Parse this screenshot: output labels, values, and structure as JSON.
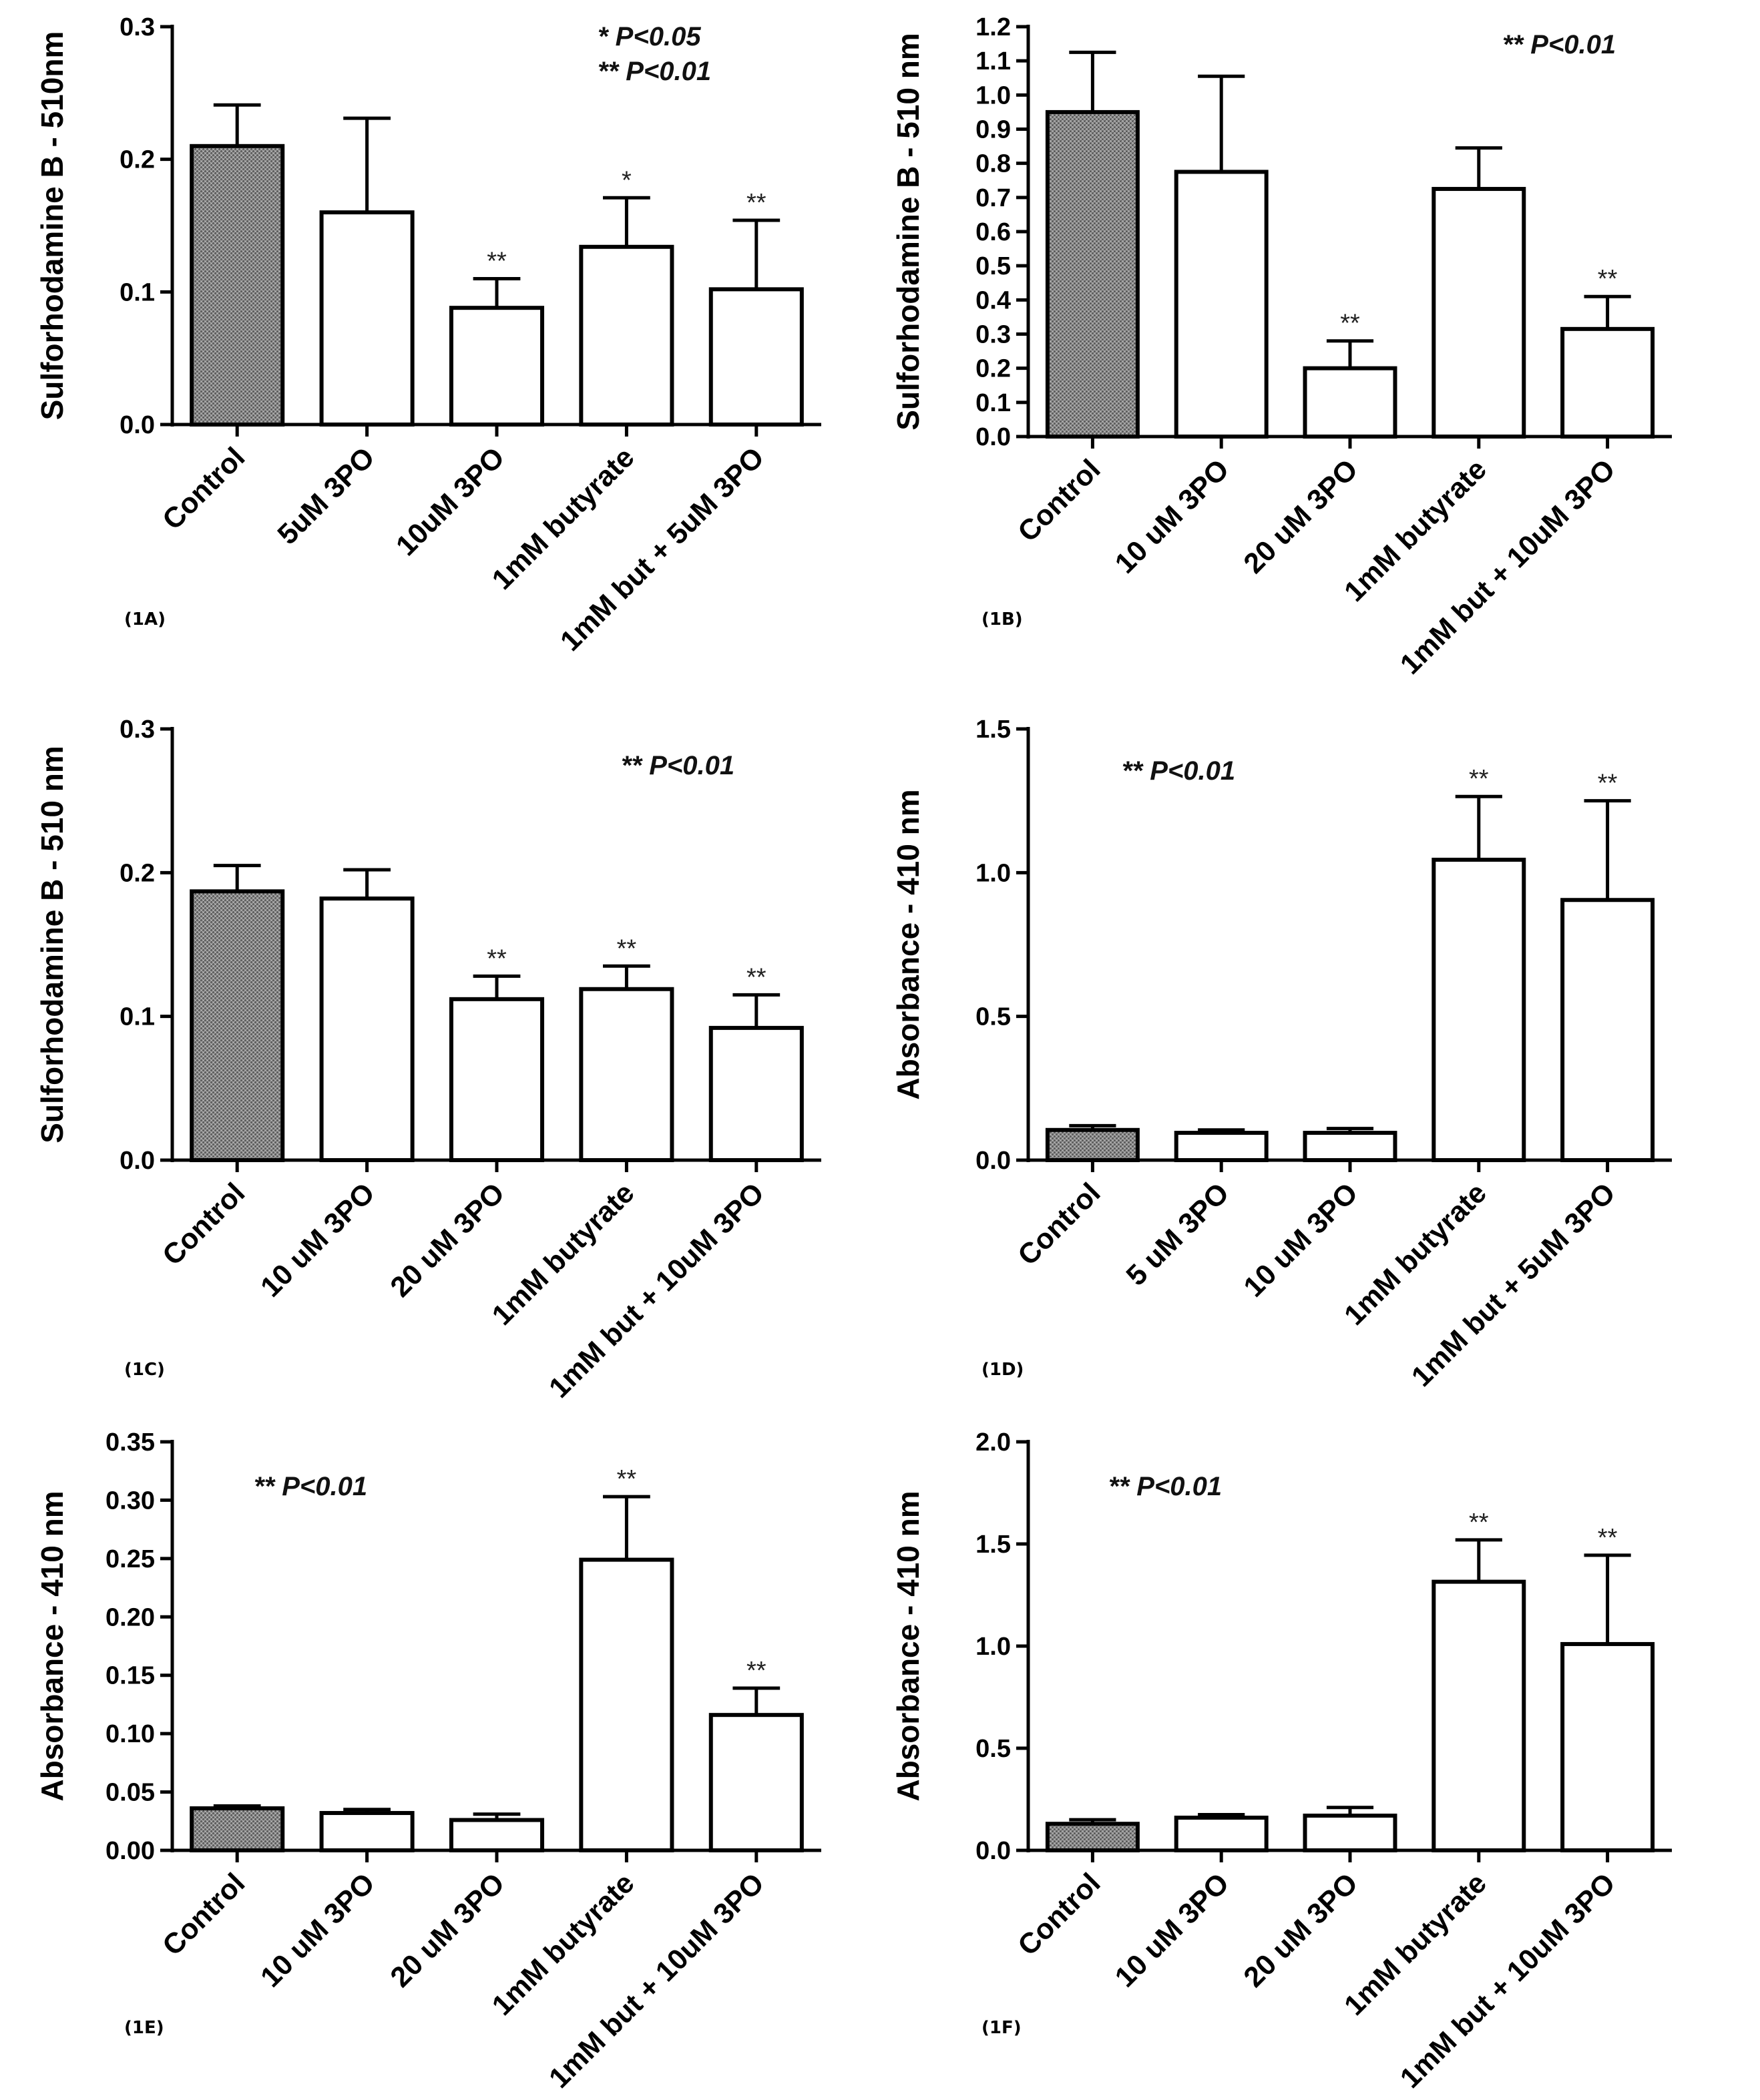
{
  "colors": {
    "control_fill": "#8a8a8a",
    "bar_fill": "#ffffff",
    "stroke": "#000000"
  },
  "chart_data": [
    {
      "type": "bar",
      "panel_label": "(1A)",
      "ylabel": "Sulforhodamine B - 510nm",
      "categories": [
        "Control",
        "5uM 3PO",
        "10uM 3PO",
        "1mM butyrate",
        "1mM but + 5uM 3PO"
      ],
      "values": [
        0.21,
        0.16,
        0.088,
        0.134,
        0.102
      ],
      "errors": [
        0.031,
        0.071,
        0.022,
        0.037,
        0.052
      ],
      "significance": [
        "",
        "",
        "**",
        "*",
        "**"
      ],
      "ylim": [
        0,
        0.3
      ],
      "yticks": [
        0.0,
        0.1,
        0.2,
        0.3
      ],
      "tick_labels": [
        "0.0",
        "0.1",
        "0.2",
        "0.3"
      ],
      "legend": [
        "* P<0.05",
        "** P<0.01"
      ]
    },
    {
      "type": "bar",
      "panel_label": "(1B)",
      "ylabel": "Sulforhodamine B - 510 nm",
      "categories": [
        "Control",
        "10 uM 3PO",
        "20 uM 3PO",
        "1mM butyrate",
        "1mM but + 10uM 3PO"
      ],
      "values": [
        0.95,
        0.775,
        0.2,
        0.725,
        0.315
      ],
      "errors": [
        0.175,
        0.28,
        0.08,
        0.12,
        0.095
      ],
      "significance": [
        "",
        "",
        "**",
        "",
        "**"
      ],
      "ylim": [
        0,
        1.2
      ],
      "yticks": [
        0.0,
        0.1,
        0.2,
        0.3,
        0.4,
        0.5,
        0.6,
        0.7,
        0.8,
        0.9,
        1.0,
        1.1,
        1.2
      ],
      "tick_labels": [
        "0.0",
        "0.1",
        "0.2",
        "0.3",
        "0.4",
        "0.5",
        "0.6",
        "0.7",
        "0.8",
        "0.9",
        "1.0",
        "1.1",
        "1.2"
      ],
      "legend": [
        "** P<0.01"
      ]
    },
    {
      "type": "bar",
      "panel_label": "(1C)",
      "ylabel": "Sulforhodamine B - 510 nm",
      "categories": [
        "Control",
        "10 uM 3PO",
        "20 uM 3PO",
        "1mM butyrate",
        "1mM but + 10uM 3PO"
      ],
      "values": [
        0.187,
        0.182,
        0.112,
        0.119,
        0.092
      ],
      "errors": [
        0.018,
        0.02,
        0.016,
        0.016,
        0.023
      ],
      "significance": [
        "",
        "",
        "**",
        "**",
        "**"
      ],
      "ylim": [
        0,
        0.3
      ],
      "yticks": [
        0.0,
        0.1,
        0.2,
        0.3
      ],
      "tick_labels": [
        "0.0",
        "0.1",
        "0.2",
        "0.3"
      ],
      "legend": [
        "** P<0.01"
      ]
    },
    {
      "type": "bar",
      "panel_label": "(1D)",
      "ylabel": "Absorbance - 410 nm",
      "categories": [
        "Control",
        "5 uM 3PO",
        "10 uM 3PO",
        "1mM butyrate",
        "1mM but + 5uM 3PO"
      ],
      "values": [
        0.105,
        0.095,
        0.095,
        1.045,
        0.905
      ],
      "errors": [
        0.015,
        0.01,
        0.015,
        0.22,
        0.345
      ],
      "significance": [
        "",
        "",
        "",
        "**",
        "**"
      ],
      "ylim": [
        0,
        1.5
      ],
      "yticks": [
        0.0,
        0.5,
        1.0,
        1.5
      ],
      "tick_labels": [
        "0.0",
        "0.5",
        "1.0",
        "1.5"
      ],
      "legend": [
        "** P<0.01"
      ]
    },
    {
      "type": "bar",
      "panel_label": "(1E)",
      "ylabel": "Absorbance - 410 nm",
      "categories": [
        "Control",
        "10 uM 3PO",
        "20 uM 3PO",
        "1mM butyrate",
        "1mM but + 10uM 3PO"
      ],
      "values": [
        0.036,
        0.032,
        0.026,
        0.249,
        0.116
      ],
      "errors": [
        0.002,
        0.003,
        0.005,
        0.054,
        0.023
      ],
      "significance": [
        "",
        "",
        "",
        "**",
        "**"
      ],
      "ylim": [
        0,
        0.35
      ],
      "yticks": [
        0.0,
        0.05,
        0.1,
        0.15,
        0.2,
        0.25,
        0.3,
        0.35
      ],
      "tick_labels": [
        "0.00",
        "0.05",
        "0.10",
        "0.15",
        "0.20",
        "0.25",
        "0.30",
        "0.35"
      ],
      "legend": [
        "** P<0.01"
      ]
    },
    {
      "type": "bar",
      "panel_label": "(1F)",
      "ylabel": "Absorbance - 410 nm",
      "categories": [
        "Control",
        "10 uM 3PO",
        "20 uM 3PO",
        "1mM butyrate",
        "1mM but + 10uM 3PO"
      ],
      "values": [
        0.13,
        0.16,
        0.17,
        1.315,
        1.01
      ],
      "errors": [
        0.02,
        0.015,
        0.04,
        0.205,
        0.435
      ],
      "significance": [
        "",
        "",
        "",
        "**",
        "**"
      ],
      "ylim": [
        0,
        2.0
      ],
      "yticks": [
        0.0,
        0.5,
        1.0,
        1.5,
        2.0
      ],
      "tick_labels": [
        "0.0",
        "0.5",
        "1.0",
        "1.5",
        "2.0"
      ],
      "legend": [
        "** P<0.01"
      ]
    }
  ]
}
